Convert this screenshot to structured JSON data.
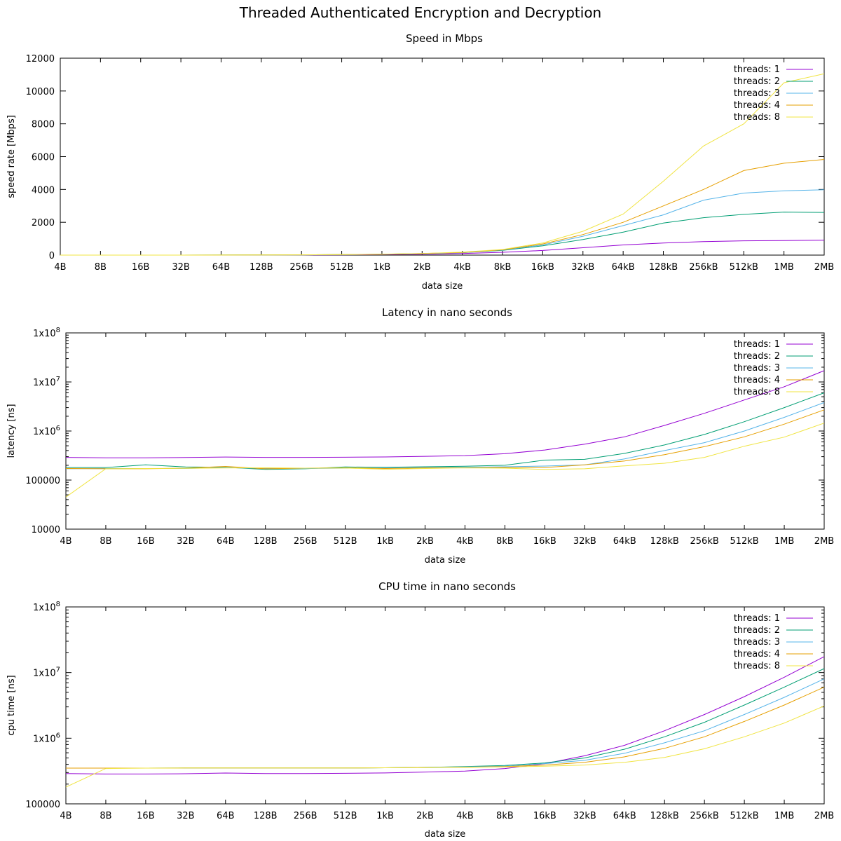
{
  "title": "Threaded Authenticated Encryption and Decryption",
  "chart_data": [
    {
      "type": "line",
      "title": "Speed in Mbps",
      "xlabel": "data size",
      "ylabel": "speed rate [Mbps]",
      "yscale": "linear",
      "ylim": [
        0,
        12000
      ],
      "yticks": [
        0,
        2000,
        4000,
        6000,
        8000,
        10000,
        12000
      ],
      "ytick_labels": [
        "0",
        "2000",
        "4000",
        "6000",
        "8000",
        "10000",
        "12000"
      ],
      "categories": [
        "4B",
        "8B",
        "16B",
        "32B",
        "64B",
        "128B",
        "256B",
        "512B",
        "1kB",
        "2kB",
        "4kB",
        "8kB",
        "16kB",
        "32kB",
        "64kB",
        "128kB",
        "256kB",
        "512kB",
        "1MB",
        "2MB"
      ],
      "legend_position": "top-right",
      "series": [
        {
          "name": "threads: 1",
          "color": "#9400d3",
          "values": [
            0,
            0,
            1,
            1,
            2,
            4,
            8,
            15,
            30,
            55,
            100,
            170,
            280,
            450,
            620,
            740,
            820,
            870,
            890,
            910
          ]
        },
        {
          "name": "threads: 2",
          "color": "#009e73",
          "values": [
            0,
            0,
            1,
            2,
            4,
            8,
            15,
            28,
            50,
            90,
            150,
            290,
            570,
            950,
            1400,
            1950,
            2280,
            2480,
            2620,
            2600
          ]
        },
        {
          "name": "threads: 3",
          "color": "#56b4e9",
          "values": [
            0,
            0,
            1,
            2,
            4,
            8,
            15,
            28,
            50,
            90,
            150,
            310,
            620,
            1150,
            1800,
            2450,
            3350,
            3780,
            3920,
            3980
          ]
        },
        {
          "name": "threads: 4",
          "color": "#e69f00",
          "values": [
            0,
            0,
            1,
            2,
            4,
            8,
            16,
            30,
            55,
            95,
            160,
            320,
            680,
            1250,
            2000,
            3000,
            4000,
            5150,
            5600,
            5830
          ]
        },
        {
          "name": "threads: 8",
          "color": "#f0e442",
          "values": [
            0,
            0,
            1,
            2,
            5,
            9,
            18,
            33,
            60,
            100,
            180,
            340,
            740,
            1450,
            2500,
            4500,
            6650,
            8000,
            10500,
            11050
          ]
        }
      ]
    },
    {
      "type": "line",
      "title": "Latency in nano seconds",
      "xlabel": "data size",
      "ylabel": "latency [ns]",
      "yscale": "log",
      "ylim": [
        10000,
        100000000
      ],
      "yticks": [
        10000,
        100000,
        1000000,
        10000000,
        100000000
      ],
      "ytick_labels": [
        "10000",
        "100000",
        "1x10^6",
        "1x10^7",
        "1x10^8"
      ],
      "categories": [
        "4B",
        "8B",
        "16B",
        "32B",
        "64B",
        "128B",
        "256B",
        "512B",
        "1kB",
        "2kB",
        "4kB",
        "8kB",
        "16kB",
        "32kB",
        "64kB",
        "128kB",
        "256kB",
        "512kB",
        "1MB",
        "2MB"
      ],
      "legend_position": "top-right",
      "series": [
        {
          "name": "threads: 1",
          "color": "#9400d3",
          "values": [
            290000,
            285000,
            285000,
            288000,
            295000,
            290000,
            290000,
            292000,
            296000,
            305000,
            315000,
            345000,
            410000,
            540000,
            760000,
            1300000,
            2300000,
            4300000,
            8000000,
            17000000
          ]
        },
        {
          "name": "threads: 2",
          "color": "#009e73",
          "values": [
            180000,
            180000,
            205000,
            185000,
            182000,
            165000,
            170000,
            185000,
            182000,
            187000,
            192000,
            200000,
            255000,
            265000,
            350000,
            520000,
            850000,
            1550000,
            3000000,
            6000000
          ]
        },
        {
          "name": "threads: 3",
          "color": "#56b4e9",
          "values": [
            170000,
            172000,
            172000,
            172000,
            180000,
            172000,
            172000,
            175000,
            176000,
            182000,
            183000,
            187000,
            193000,
            205000,
            270000,
            400000,
            580000,
            1000000,
            1900000,
            3800000
          ]
        },
        {
          "name": "threads: 4",
          "color": "#e69f00",
          "values": [
            172000,
            170000,
            170000,
            175000,
            190000,
            170000,
            175000,
            178000,
            172000,
            177000,
            178000,
            181000,
            180000,
            205000,
            245000,
            330000,
            480000,
            760000,
            1380000,
            2700000
          ]
        },
        {
          "name": "threads: 8",
          "color": "#f0e442",
          "values": [
            45000,
            170000,
            172000,
            174000,
            176000,
            178000,
            175000,
            176000,
            166000,
            172000,
            177000,
            175000,
            165000,
            170000,
            195000,
            220000,
            290000,
            490000,
            750000,
            1450000
          ]
        }
      ]
    },
    {
      "type": "line",
      "title": "CPU time in nano seconds",
      "xlabel": "data size",
      "ylabel": "cpu time [ns]",
      "yscale": "log",
      "ylim": [
        100000,
        100000000
      ],
      "yticks": [
        100000,
        1000000,
        10000000,
        100000000
      ],
      "ytick_labels": [
        "100000",
        "1x10^6",
        "1x10^7",
        "1x10^8"
      ],
      "categories": [
        "4B",
        "8B",
        "16B",
        "32B",
        "64B",
        "128B",
        "256B",
        "512B",
        "1kB",
        "2kB",
        "4kB",
        "8kB",
        "16kB",
        "32kB",
        "64kB",
        "128kB",
        "256kB",
        "512kB",
        "1MB",
        "2MB"
      ],
      "legend_position": "top-right",
      "series": [
        {
          "name": "threads: 1",
          "color": "#9400d3",
          "values": [
            290000,
            285000,
            285000,
            288000,
            295000,
            290000,
            290000,
            292000,
            296000,
            305000,
            315000,
            345000,
            410000,
            540000,
            780000,
            1300000,
            2300000,
            4300000,
            8500000,
            17500000
          ]
        },
        {
          "name": "threads: 2",
          "color": "#009e73",
          "values": [
            350000,
            350000,
            350000,
            352000,
            352000,
            352000,
            352000,
            352000,
            355000,
            360000,
            370000,
            385000,
            420000,
            500000,
            680000,
            1050000,
            1750000,
            3200000,
            6000000,
            11500000
          ]
        },
        {
          "name": "threads: 3",
          "color": "#56b4e9",
          "values": [
            350000,
            350000,
            350000,
            352000,
            352000,
            352000,
            352000,
            352000,
            355000,
            360000,
            365000,
            375000,
            410000,
            460000,
            590000,
            850000,
            1300000,
            2300000,
            4200000,
            8000000
          ]
        },
        {
          "name": "threads: 4",
          "color": "#e69f00",
          "values": [
            350000,
            350000,
            350000,
            352000,
            352000,
            352000,
            352000,
            352000,
            355000,
            358000,
            362000,
            370000,
            390000,
            430000,
            520000,
            700000,
            1050000,
            1800000,
            3200000,
            6000000
          ]
        },
        {
          "name": "threads: 8",
          "color": "#f0e442",
          "values": [
            180000,
            345000,
            350000,
            352000,
            352000,
            352000,
            352000,
            352000,
            355000,
            357000,
            360000,
            365000,
            375000,
            390000,
            430000,
            510000,
            690000,
            1050000,
            1700000,
            3100000
          ]
        }
      ]
    }
  ]
}
